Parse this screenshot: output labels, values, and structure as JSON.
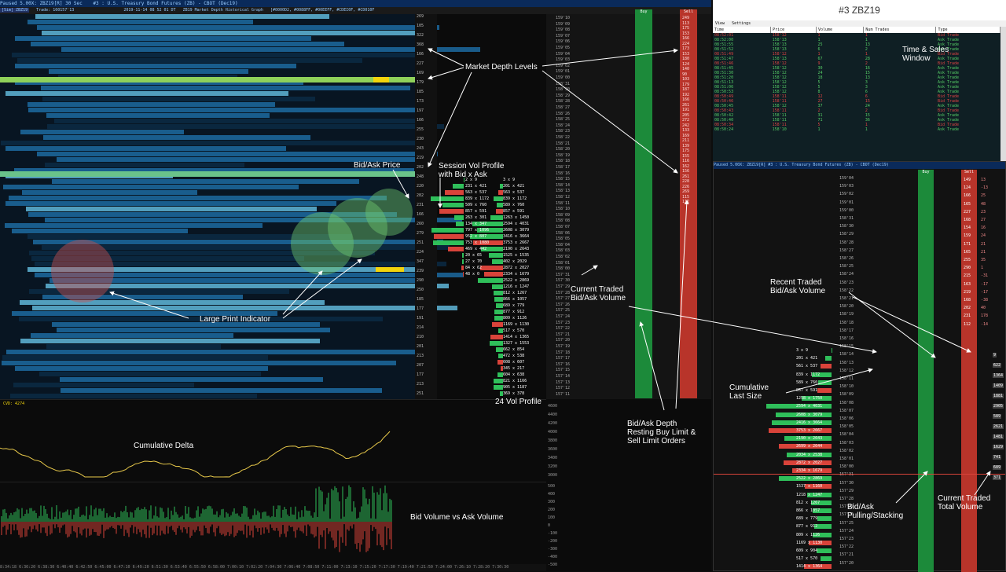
{
  "main": {
    "titlebar": [
      "Paused 5.00X: ZBZ19[R] 30 Sec",
      "#3 : U.S. Treasury Bond Futures (ZB) - CBOT (Dec19)"
    ],
    "header_line": [
      "[Sim] ZBZ19",
      "Trade: 160157'13",
      "Paused 5.00X: ZBZ19[R] 30 Sec",
      "#3",
      "2019-11-14 08 52 01 DT",
      "ZB19 Market Depth Historical Graph",
      "[#0000D2, #0088FF, #00EEFF, #CDEI0F, #CD010F"
    ],
    "heatmap_prices": [
      "269",
      "105",
      "322",
      "368",
      "166",
      "227",
      "169",
      "179",
      "185",
      "173",
      "197",
      "166",
      "255",
      "230",
      "243",
      "219",
      "202",
      "248",
      "220",
      "282",
      "231",
      "166",
      "260",
      "279",
      "251",
      "224",
      "347",
      "239",
      "290",
      "250",
      "185",
      "177",
      "191",
      "214",
      "210",
      "201",
      "213",
      "207",
      "177",
      "213",
      "251"
    ],
    "ladder_prices": [
      "159'10",
      "159'09",
      "159'08",
      "159'07",
      "159'06",
      "159'05",
      "159'04",
      "159'03",
      "159'02",
      "159'01",
      "159'00",
      "158'31",
      "158'30",
      "158'29",
      "158'28",
      "158'27",
      "158'26",
      "158'25",
      "158'24",
      "158'23",
      "158'22",
      "158'21",
      "158'20",
      "158'19",
      "158'18",
      "158'17",
      "158'16",
      "158'15",
      "158'14",
      "158'13",
      "158'12",
      "158'11",
      "158'10",
      "158'09",
      "158'08",
      "158'07",
      "158'06",
      "158'05",
      "158'04",
      "158'03",
      "158'02",
      "158'01",
      "158'00",
      "157'31",
      "157'30",
      "157'29",
      "157'28",
      "157'27",
      "157'26",
      "157'25",
      "157'24",
      "157'23",
      "157'22",
      "157'21",
      "157'20",
      "157'19",
      "157'18",
      "157'17",
      "157'16",
      "157'15",
      "157'14",
      "157'13",
      "157'12",
      "157'11"
    ],
    "buy_header": "Buy",
    "sell_header": "Sell",
    "sell_sizes": [
      "249",
      "113",
      "175",
      "153",
      "166",
      "224",
      "173",
      "153",
      "180",
      "124",
      "140",
      "90",
      "103",
      "179",
      "187",
      "192",
      "166",
      "261",
      "191",
      "205",
      "272",
      "242",
      "133",
      "169",
      "211",
      "139",
      "175",
      "155",
      "116",
      "162",
      "156",
      "261",
      "228",
      "226",
      "269",
      "115",
      "112"
    ],
    "profile_rows": [
      {
        "l": "3 x 9"
      },
      {
        "l": "201 x 421"
      },
      {
        "l": "563 x 537"
      },
      {
        "l": "839 x 1172"
      },
      {
        "l": "589 x 760"
      },
      {
        "l": "857 x 591"
      },
      {
        "l": "1263 x 1450"
      },
      {
        "l": "2594 x 4031"
      },
      {
        "l": "2608 x 3079"
      },
      {
        "l": "3416 x 3664"
      },
      {
        "l": "3753 x 2667"
      },
      {
        "l": "2190 x 2643"
      },
      {
        "l": "1525 x 1535"
      },
      {
        "l": "402 x 2029"
      },
      {
        "l": "2872 x 2027"
      },
      {
        "l": "2334 x 1679"
      },
      {
        "l": "2522 x 2869"
      },
      {
        "l": "1216 x 1247"
      },
      {
        "l": "812 x 1267"
      },
      {
        "l": "866 x 1057"
      },
      {
        "l": "689 x 779"
      },
      {
        "l": "877 x 912"
      },
      {
        "l": "809 x 1126"
      },
      {
        "l": "1169 x 1130"
      },
      {
        "l": "517 x 570"
      },
      {
        "l": "1414 x 1365"
      },
      {
        "l": "1327 x 1553"
      },
      {
        "l": "662 x 854"
      },
      {
        "l": "472 x 538"
      },
      {
        "l": "608 x 607"
      },
      {
        "l": "345 x 217"
      },
      {
        "l": "604 x 638"
      },
      {
        "l": "821 x 1166"
      },
      {
        "l": "905 x 1187"
      },
      {
        "l": "369 x 378"
      }
    ],
    "session_rows": [
      {
        "l": "2 x 9"
      },
      {
        "l": "231 x 421"
      },
      {
        "l": "563 x 537"
      },
      {
        "l": "839 x 1172"
      },
      {
        "l": "509 x 760"
      },
      {
        "l": "857 x 591"
      },
      {
        "l": "263 x 301"
      },
      {
        "l": "134 x 347"
      },
      {
        "l": "797 x 1096"
      },
      {
        "l": "952 x 807"
      },
      {
        "l": "753 x 1080"
      },
      {
        "l": "469 x 442"
      },
      {
        "l": "20 x 65"
      },
      {
        "l": "27 x 70"
      },
      {
        "l": "84 x 62"
      },
      {
        "l": "48 x 0"
      }
    ],
    "cvd_label": "CVD: 4274",
    "cvd_axis": [
      "4600",
      "4400",
      "4200",
      "4000",
      "3800",
      "3600",
      "3400",
      "3200",
      "3000"
    ],
    "vol_axis": [
      "500",
      "400",
      "300",
      "200",
      "100",
      "0",
      "-100",
      "-200",
      "-300",
      "-400",
      "-500"
    ],
    "xaxis": "8:34:18  6:36:20  6:38:30  6:40:40  6:42:50  6:45:00  6:47:10  6:49:20  6:51:30  6:53:40  6:55:50  6:58:00  7:00:10  7:02:20  7:04:30  7:06:40  7:08:50  7:11:00  7:13:10  7:15:20  7:17:30  7:19:40  7:21:50  7:24:00  7:26:10  7:28:20  7:30:30"
  },
  "annotations": {
    "market_depth": "Market Depth Levels",
    "bid_ask_price": "Bid/Ask Price",
    "session_profile": "Session Vol Profile\nwith Bid x Ask",
    "current_traded": "Current Traded\nBid/Ask Volume",
    "large_print": "Large Print Indicator",
    "vol24": "24 Vol Profile",
    "cum_delta": "Cumulative Delta",
    "bid_vs_ask": "Bid Volume vs Ask Volume",
    "depth_resting": "Bid/Ask Depth\nResting Buy Limit &\nSell Limit Orders",
    "ts_window": "Time & Sales\nWindow",
    "recent_traded": "Recent Traded\nBid/Ask Volume",
    "cum_last_size": "Cumulative\nLast Size",
    "pulling": "Bid/Ask\nPulling/Stacking",
    "current_total": "Current Traded\nTotal Volume"
  },
  "ts": {
    "title": "#3 ZBZ19",
    "menu": [
      "View",
      "Settings"
    ],
    "columns": [
      "Time",
      "Price",
      "Volume",
      "Num Trades",
      "Type"
    ],
    "rows": [
      [
        "08:52:01",
        "158'12",
        "1",
        "1",
        "Bid Trade",
        "bid"
      ],
      [
        "08:52:00",
        "158'13",
        "1",
        "1",
        "Ask Trade",
        "ask"
      ],
      [
        "08:51:55",
        "158'13",
        "25",
        "13",
        "Ask Trade",
        "ask"
      ],
      [
        "08:51:52",
        "158'13",
        "6",
        "2",
        "Ask Trade",
        "ask"
      ],
      [
        "08:51:49",
        "158'12",
        "1",
        "1",
        "Bid Trade",
        "bid"
      ],
      [
        "08:51:47",
        "158'13",
        "67",
        "28",
        "Ask Trade",
        "ask"
      ],
      [
        "08:51:46",
        "158'12",
        "9",
        "2",
        "Bid Trade",
        "bid"
      ],
      [
        "08:51:45",
        "158'12",
        "30",
        "16",
        "Ask Trade",
        "ask"
      ],
      [
        "08:51:30",
        "158'12",
        "24",
        "15",
        "Ask Trade",
        "ask"
      ],
      [
        "08:51:20",
        "158'12",
        "18",
        "13",
        "Ask Trade",
        "ask"
      ],
      [
        "08:51:13",
        "158'12",
        "5",
        "3",
        "Ask Trade",
        "ask"
      ],
      [
        "08:51:06",
        "158'12",
        "5",
        "3",
        "Ask Trade",
        "ask"
      ],
      [
        "08:50:53",
        "158'12",
        "8",
        "6",
        "Ask Trade",
        "ask"
      ],
      [
        "08:50:49",
        "158'11",
        "12",
        "6",
        "Bid Trade",
        "bid"
      ],
      [
        "08:50:46",
        "158'11",
        "27",
        "15",
        "Bid Trade",
        "bid"
      ],
      [
        "08:50:45",
        "158'12",
        "37",
        "24",
        "Ask Trade",
        "ask"
      ],
      [
        "08:50:43",
        "158'11",
        "2",
        "2",
        "Bid Trade",
        "bid"
      ],
      [
        "08:50:42",
        "158'11",
        "31",
        "15",
        "Ask Trade",
        "ask"
      ],
      [
        "08:50:40",
        "158'11",
        "71",
        "36",
        "Ask Trade",
        "ask"
      ],
      [
        "08:50:34",
        "158'11",
        "5",
        "1",
        "Bid Trade",
        "bid"
      ],
      [
        "08:50:24",
        "158'10",
        "1",
        "1",
        "Ask Trade",
        "ask"
      ]
    ]
  },
  "inset": {
    "title": "Paused 5.00X: ZBZ19[R] #3 : U.S. Treasury Bond Futures (ZB) - CBOT (Dec19)",
    "buy_header": "Buy",
    "sell_header": "Sell",
    "prices": [
      "159'04",
      "159'03",
      "159'02",
      "159'01",
      "159'00",
      "158'31",
      "158'30",
      "158'29",
      "158'28",
      "158'27",
      "158'26",
      "158'25",
      "158'24",
      "158'23",
      "158'22",
      "158'21",
      "158'20",
      "158'19",
      "158'18",
      "158'17",
      "158'16",
      "158'15",
      "158'14",
      "158'13",
      "158'12",
      "158'11",
      "158'10",
      "158'09",
      "158'08",
      "158'07",
      "158'06",
      "158'05",
      "158'04",
      "158'03",
      "158'02",
      "158'01",
      "158'00",
      "157'31",
      "157'30",
      "157'29",
      "157'28",
      "157'27",
      "157'26",
      "157'25",
      "157'24",
      "157'23",
      "157'22",
      "157'21",
      "157'20"
    ],
    "sell_sizes": [
      "149",
      "124",
      "166",
      "165",
      "227",
      "168",
      "154",
      "159",
      "171",
      "165",
      "255",
      "290",
      "215",
      "163",
      "219",
      "168",
      "202",
      "231",
      "112"
    ],
    "sell_side": [
      "13",
      "-13",
      "25",
      "48",
      "23",
      "27",
      "16",
      "24",
      "21",
      "21",
      "35",
      "1",
      "-31",
      "-17",
      "-17",
      "-38",
      "40",
      "178",
      "-14"
    ],
    "total_col": [
      "9",
      "622",
      "1364",
      "1409",
      "1881",
      "2905",
      "589",
      "2621",
      "1481",
      "1629",
      "741",
      "689",
      "371"
    ],
    "bid_rows": [
      {
        "p": "3 x 9"
      },
      {
        "p": "201 x 421"
      },
      {
        "p": "561 x 537"
      },
      {
        "p": "839 x 1172"
      },
      {
        "p": "589 x 760"
      },
      {
        "p": "857 x 591"
      },
      {
        "p": "1258 x 1750"
      },
      {
        "p": "2594 x 4031"
      },
      {
        "p": "2608 x 3079"
      },
      {
        "p": "2416 x 3664"
      },
      {
        "p": "3753 x 2667"
      },
      {
        "p": "2190 x 2643"
      },
      {
        "p": "2699 x 2644"
      },
      {
        "p": "2034 x 2538"
      },
      {
        "p": "2872 x 2027"
      },
      {
        "p": "2334 x 1679"
      },
      {
        "p": "2522 x 2869"
      },
      {
        "p": "1537 x 1160"
      },
      {
        "p": "1218 x 1247"
      },
      {
        "p": "812 x 1267"
      },
      {
        "p": "866 x 1057"
      },
      {
        "p": "689 x 779"
      },
      {
        "p": "877 x 912"
      },
      {
        "p": "809 x 1126"
      },
      {
        "p": "1169 x 1130"
      },
      {
        "p": "609 x 904"
      },
      {
        "p": "517 x 570"
      },
      {
        "p": "1414 x 1364"
      }
    ]
  },
  "colors": {
    "bid": "#d9433a",
    "ask": "#2fbf5a",
    "buy_col": "#1c8a3a",
    "sell_col": "#b8342a",
    "heat_dark": "#0a2a44",
    "heat_mid": "#1c6aa0",
    "heat_hi": "#5fb6d8",
    "yellow": "#f2d40c",
    "lime": "#8fd15a"
  }
}
